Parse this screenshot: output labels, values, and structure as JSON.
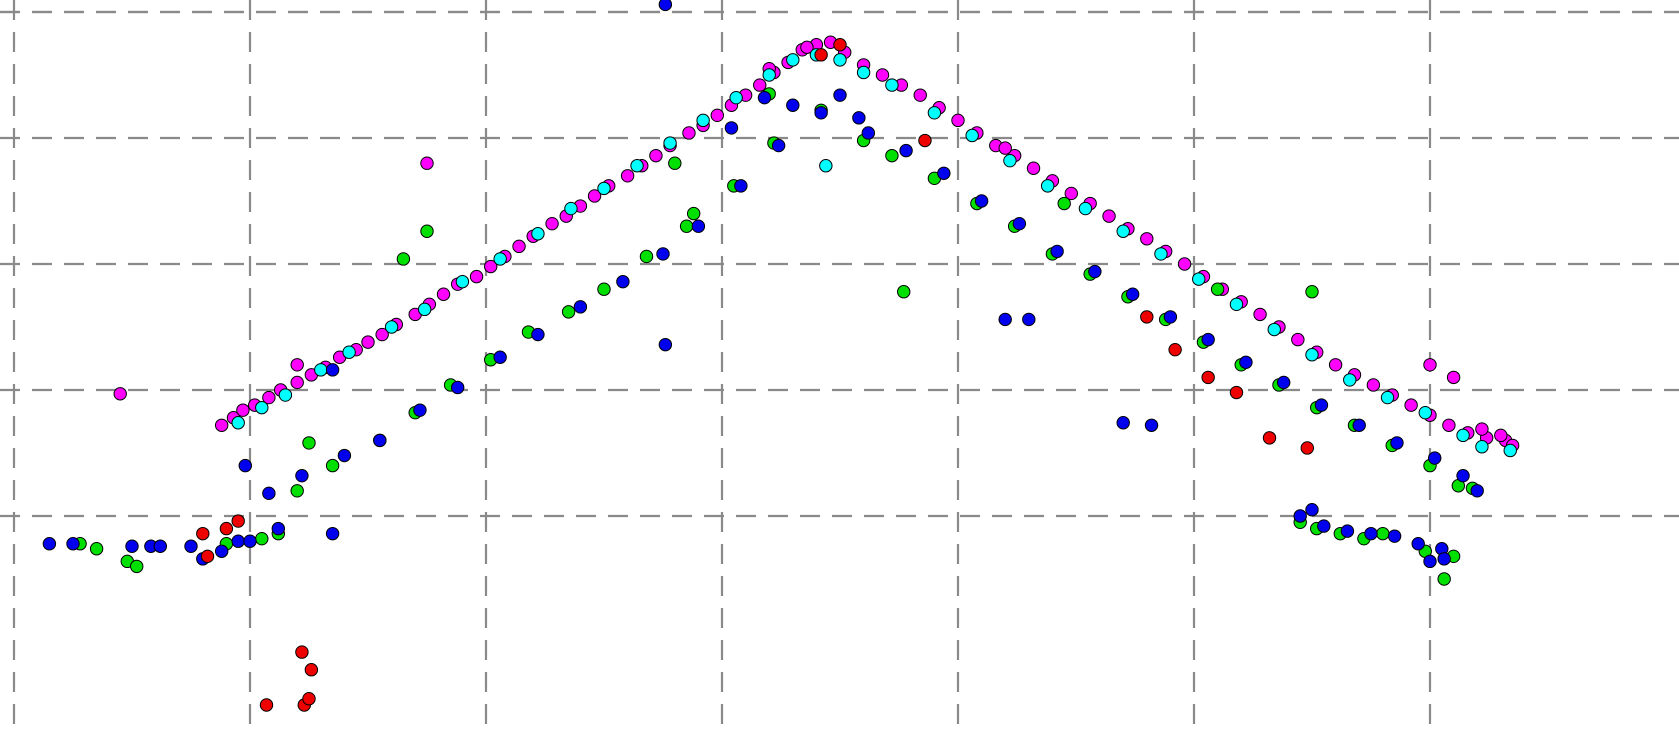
{
  "chart_data": {
    "type": "scatter",
    "title": "",
    "xlabel": "",
    "ylabel": "",
    "xlim": [
      0,
      7
    ],
    "ylim": [
      0,
      5.6
    ],
    "grid": true,
    "grid_style": "dashed",
    "legend": "none",
    "x_ticks": [
      1,
      2,
      3,
      4,
      5,
      6
    ],
    "y_ticks": [
      1,
      2,
      3,
      4,
      5
    ],
    "colors": {
      "background": "#ffffff",
      "grid": "#8a8a8a",
      "point_edge": "#000000"
    },
    "series": [
      {
        "color": "#ff00ff",
        "points": [
          [
            0.45,
            1.97
          ],
          [
            0.88,
            1.72
          ],
          [
            0.93,
            1.78
          ],
          [
            0.97,
            1.84
          ],
          [
            1.02,
            1.88
          ],
          [
            1.08,
            1.94
          ],
          [
            1.13,
            2.0
          ],
          [
            1.2,
            2.06
          ],
          [
            1.26,
            2.12
          ],
          [
            1.32,
            2.18
          ],
          [
            1.38,
            2.26
          ],
          [
            1.45,
            2.32
          ],
          [
            1.5,
            2.38
          ],
          [
            1.56,
            2.44
          ],
          [
            1.62,
            2.52
          ],
          [
            1.7,
            2.6
          ],
          [
            1.76,
            2.68
          ],
          [
            1.82,
            2.76
          ],
          [
            1.88,
            2.84
          ],
          [
            1.96,
            2.9
          ],
          [
            2.02,
            2.98
          ],
          [
            2.08,
            3.06
          ],
          [
            2.14,
            3.14
          ],
          [
            2.2,
            3.22
          ],
          [
            2.28,
            3.32
          ],
          [
            2.34,
            3.38
          ],
          [
            2.4,
            3.46
          ],
          [
            2.46,
            3.54
          ],
          [
            2.52,
            3.62
          ],
          [
            2.6,
            3.7
          ],
          [
            2.66,
            3.78
          ],
          [
            2.72,
            3.86
          ],
          [
            2.78,
            3.94
          ],
          [
            2.86,
            4.04
          ],
          [
            2.92,
            4.1
          ],
          [
            2.98,
            4.18
          ],
          [
            3.04,
            4.26
          ],
          [
            3.1,
            4.34
          ],
          [
            3.16,
            4.42
          ],
          [
            3.22,
            4.52
          ],
          [
            3.28,
            4.6
          ],
          [
            3.34,
            4.7
          ],
          [
            3.4,
            4.74
          ],
          [
            3.46,
            4.76
          ],
          [
            3.52,
            4.68
          ],
          [
            3.6,
            4.58
          ],
          [
            3.68,
            4.5
          ],
          [
            3.76,
            4.42
          ],
          [
            3.84,
            4.34
          ],
          [
            3.92,
            4.24
          ],
          [
            4.0,
            4.14
          ],
          [
            4.08,
            4.04
          ],
          [
            4.16,
            3.94
          ],
          [
            4.24,
            3.86
          ],
          [
            4.32,
            3.76
          ],
          [
            4.4,
            3.66
          ],
          [
            4.48,
            3.56
          ],
          [
            4.56,
            3.48
          ],
          [
            4.64,
            3.38
          ],
          [
            4.72,
            3.28
          ],
          [
            4.8,
            3.2
          ],
          [
            4.88,
            3.1
          ],
          [
            4.96,
            3.0
          ],
          [
            5.04,
            2.9
          ],
          [
            5.12,
            2.8
          ],
          [
            5.2,
            2.7
          ],
          [
            5.28,
            2.6
          ],
          [
            5.36,
            2.5
          ],
          [
            5.44,
            2.4
          ],
          [
            5.52,
            2.3
          ],
          [
            5.6,
            2.2
          ],
          [
            5.68,
            2.12
          ],
          [
            5.76,
            2.04
          ],
          [
            5.84,
            1.96
          ],
          [
            5.92,
            1.88
          ],
          [
            6.0,
            1.8
          ],
          [
            6.08,
            1.72
          ],
          [
            6.16,
            1.66
          ],
          [
            6.24,
            1.62
          ],
          [
            6.32,
            1.6
          ],
          [
            6.1,
            2.1
          ],
          [
            6.0,
            2.2
          ],
          [
            6.22,
            1.69
          ],
          [
            6.3,
            1.64
          ],
          [
            6.35,
            1.56
          ],
          [
            1.75,
            3.8
          ],
          [
            1.2,
            2.2
          ],
          [
            3.2,
            4.55
          ],
          [
            3.36,
            4.72
          ],
          [
            4.2,
            3.92
          ]
        ]
      },
      {
        "color": "#00ffff",
        "points": [
          [
            0.95,
            1.74
          ],
          [
            1.05,
            1.86
          ],
          [
            1.15,
            1.96
          ],
          [
            1.3,
            2.16
          ],
          [
            1.42,
            2.3
          ],
          [
            1.6,
            2.5
          ],
          [
            1.74,
            2.64
          ],
          [
            1.9,
            2.86
          ],
          [
            2.06,
            3.04
          ],
          [
            2.22,
            3.24
          ],
          [
            2.36,
            3.44
          ],
          [
            2.5,
            3.6
          ],
          [
            2.64,
            3.78
          ],
          [
            2.78,
            3.96
          ],
          [
            2.92,
            4.14
          ],
          [
            3.06,
            4.32
          ],
          [
            3.2,
            4.5
          ],
          [
            3.3,
            4.62
          ],
          [
            3.4,
            4.66
          ],
          [
            3.5,
            4.62
          ],
          [
            3.44,
            3.78
          ],
          [
            3.6,
            4.52
          ],
          [
            3.72,
            4.42
          ],
          [
            3.9,
            4.2
          ],
          [
            4.06,
            4.02
          ],
          [
            4.22,
            3.82
          ],
          [
            4.38,
            3.62
          ],
          [
            4.54,
            3.44
          ],
          [
            4.7,
            3.26
          ],
          [
            4.86,
            3.08
          ],
          [
            5.02,
            2.88
          ],
          [
            5.18,
            2.68
          ],
          [
            5.34,
            2.48
          ],
          [
            5.5,
            2.28
          ],
          [
            5.66,
            2.08
          ],
          [
            5.82,
            1.94
          ],
          [
            5.98,
            1.82
          ],
          [
            6.14,
            1.64
          ],
          [
            6.22,
            1.55
          ],
          [
            6.34,
            1.52
          ]
        ]
      },
      {
        "color": "#00e000",
        "points": [
          [
            0.28,
            0.78
          ],
          [
            0.35,
            0.74
          ],
          [
            0.48,
            0.64
          ],
          [
            0.9,
            0.78
          ],
          [
            1.05,
            0.82
          ],
          [
            1.12,
            0.86
          ],
          [
            1.2,
            1.2
          ],
          [
            1.35,
            1.4
          ],
          [
            1.55,
            1.6
          ],
          [
            1.7,
            1.82
          ],
          [
            1.85,
            2.04
          ],
          [
            2.02,
            2.24
          ],
          [
            2.18,
            2.46
          ],
          [
            2.35,
            2.62
          ],
          [
            2.5,
            2.8
          ],
          [
            2.68,
            3.06
          ],
          [
            2.85,
            3.3
          ],
          [
            3.05,
            3.62
          ],
          [
            3.22,
            3.96
          ],
          [
            3.42,
            4.22
          ],
          [
            1.25,
            1.58
          ],
          [
            1.65,
            3.04
          ],
          [
            1.75,
            3.26
          ],
          [
            2.8,
            3.8
          ],
          [
            2.88,
            3.4
          ],
          [
            3.2,
            4.35
          ],
          [
            3.6,
            3.98
          ],
          [
            3.72,
            3.86
          ],
          [
            3.9,
            3.68
          ],
          [
            4.08,
            3.48
          ],
          [
            4.24,
            3.3
          ],
          [
            4.4,
            3.08
          ],
          [
            4.56,
            2.92
          ],
          [
            4.72,
            2.74
          ],
          [
            4.88,
            2.56
          ],
          [
            5.04,
            2.38
          ],
          [
            5.2,
            2.2
          ],
          [
            5.36,
            2.04
          ],
          [
            5.52,
            1.86
          ],
          [
            5.68,
            1.72
          ],
          [
            5.84,
            1.56
          ],
          [
            6.0,
            1.4
          ],
          [
            6.12,
            1.24
          ],
          [
            6.18,
            1.22
          ],
          [
            3.77,
            2.78
          ],
          [
            4.45,
            3.48
          ],
          [
            5.1,
            2.8
          ],
          [
            5.5,
            2.78
          ],
          [
            5.45,
            0.95
          ],
          [
            5.52,
            0.9
          ],
          [
            5.62,
            0.86
          ],
          [
            5.72,
            0.82
          ],
          [
            5.8,
            0.86
          ],
          [
            5.98,
            0.72
          ],
          [
            6.1,
            0.68
          ],
          [
            6.06,
            0.5
          ],
          [
            0.52,
            0.6
          ]
        ]
      },
      {
        "color": "#0000ee",
        "points": [
          [
            0.15,
            0.78
          ],
          [
            0.25,
            0.78
          ],
          [
            0.5,
            0.76
          ],
          [
            0.58,
            0.76
          ],
          [
            0.62,
            0.76
          ],
          [
            0.75,
            0.76
          ],
          [
            0.8,
            0.66
          ],
          [
            0.88,
            0.72
          ],
          [
            0.95,
            0.8
          ],
          [
            1.0,
            0.8
          ],
          [
            1.12,
            0.9
          ],
          [
            1.35,
            0.86
          ],
          [
            0.98,
            1.4
          ],
          [
            1.08,
            1.18
          ],
          [
            1.22,
            1.32
          ],
          [
            1.4,
            1.48
          ],
          [
            1.55,
            1.6
          ],
          [
            1.72,
            1.84
          ],
          [
            1.88,
            2.02
          ],
          [
            2.06,
            2.26
          ],
          [
            2.22,
            2.44
          ],
          [
            2.4,
            2.66
          ],
          [
            2.58,
            2.86
          ],
          [
            2.75,
            3.08
          ],
          [
            2.9,
            3.3
          ],
          [
            3.08,
            3.62
          ],
          [
            3.24,
            3.94
          ],
          [
            3.42,
            4.2
          ],
          [
            3.58,
            4.16
          ],
          [
            1.35,
            2.16
          ],
          [
            2.76,
            2.36
          ],
          [
            2.76,
            5.06
          ],
          [
            3.04,
            4.08
          ],
          [
            3.18,
            4.32
          ],
          [
            3.3,
            4.26
          ],
          [
            3.5,
            4.34
          ],
          [
            3.62,
            4.04
          ],
          [
            3.78,
            3.9
          ],
          [
            3.94,
            3.72
          ],
          [
            4.1,
            3.5
          ],
          [
            4.26,
            3.32
          ],
          [
            4.42,
            3.1
          ],
          [
            4.58,
            2.94
          ],
          [
            4.74,
            2.76
          ],
          [
            4.9,
            2.58
          ],
          [
            5.06,
            2.4
          ],
          [
            5.22,
            2.22
          ],
          [
            5.38,
            2.06
          ],
          [
            5.54,
            1.88
          ],
          [
            5.7,
            1.72
          ],
          [
            5.86,
            1.58
          ],
          [
            6.02,
            1.46
          ],
          [
            6.14,
            1.32
          ],
          [
            6.2,
            1.2
          ],
          [
            4.2,
            2.56
          ],
          [
            4.3,
            2.56
          ],
          [
            4.7,
            1.74
          ],
          [
            4.82,
            1.72
          ],
          [
            5.45,
            1.0
          ],
          [
            5.55,
            0.92
          ],
          [
            5.65,
            0.88
          ],
          [
            5.75,
            0.86
          ],
          [
            5.85,
            0.84
          ],
          [
            5.95,
            0.78
          ],
          [
            6.05,
            0.74
          ],
          [
            6.06,
            0.66
          ],
          [
            5.5,
            1.05
          ],
          [
            6.0,
            0.64
          ]
        ]
      },
      {
        "color": "#ee0000",
        "points": [
          [
            0.82,
            0.68
          ],
          [
            0.8,
            0.86
          ],
          [
            0.9,
            0.9
          ],
          [
            0.95,
            0.96
          ],
          [
            1.07,
            -0.5
          ],
          [
            1.23,
            -0.5
          ],
          [
            1.25,
            -0.45
          ],
          [
            1.26,
            -0.22
          ],
          [
            1.22,
            -0.08
          ],
          [
            3.42,
            4.66
          ],
          [
            3.5,
            4.74
          ],
          [
            3.86,
            3.98
          ],
          [
            4.8,
            2.58
          ],
          [
            4.92,
            2.32
          ],
          [
            5.06,
            2.1
          ],
          [
            5.18,
            1.98
          ],
          [
            5.32,
            1.62
          ],
          [
            5.48,
            1.54
          ]
        ]
      }
    ]
  }
}
